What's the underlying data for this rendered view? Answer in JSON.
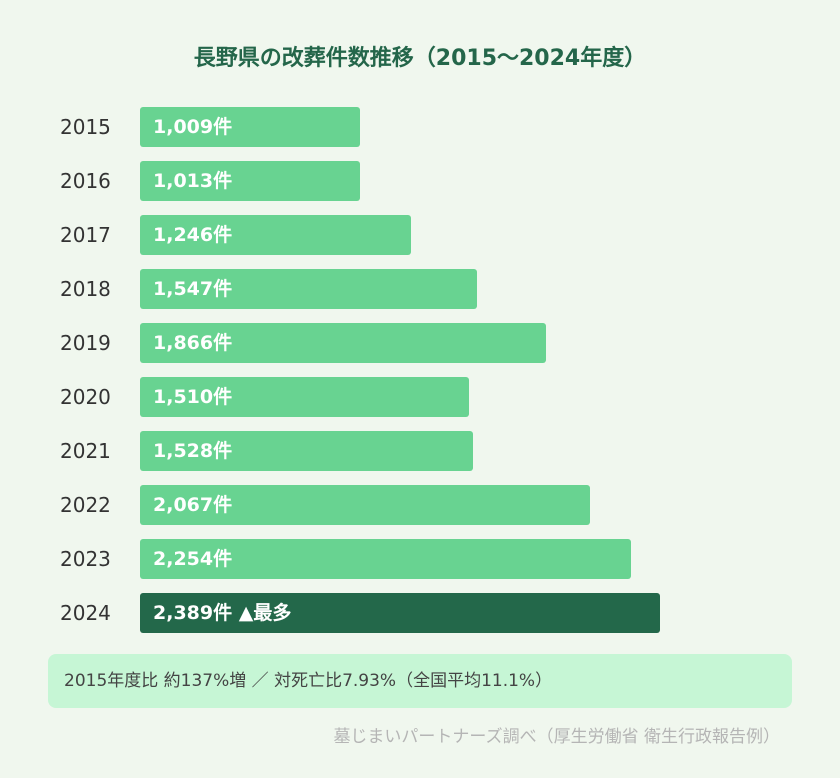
{
  "chart_data": {
    "type": "bar",
    "orientation": "horizontal",
    "title": "長野県の改葬件数推移（2015〜2024年度）",
    "categories": [
      "2015",
      "2016",
      "2017",
      "2018",
      "2019",
      "2020",
      "2021",
      "2022",
      "2023",
      "2024"
    ],
    "values": [
      1009,
      1013,
      1246,
      1547,
      1866,
      1510,
      1528,
      2067,
      2254,
      2389
    ],
    "labels": [
      "1,009件",
      "1,013件",
      "1,246件",
      "1,547件",
      "1,866件",
      "1,510件",
      "1,528件",
      "2,067件",
      "2,254件",
      "2,389件 ▲最多"
    ],
    "highlight_index": 9,
    "colors": {
      "bar": "#68d391",
      "highlight": "#23684a",
      "title": "#24664a"
    }
  },
  "note": "2015年度比 約137%増 ／ 対死亡比7.93%（全国平均11.1%）",
  "source": "墓じまいパートナーズ調べ（厚生労働省 衛生行政報告例）"
}
